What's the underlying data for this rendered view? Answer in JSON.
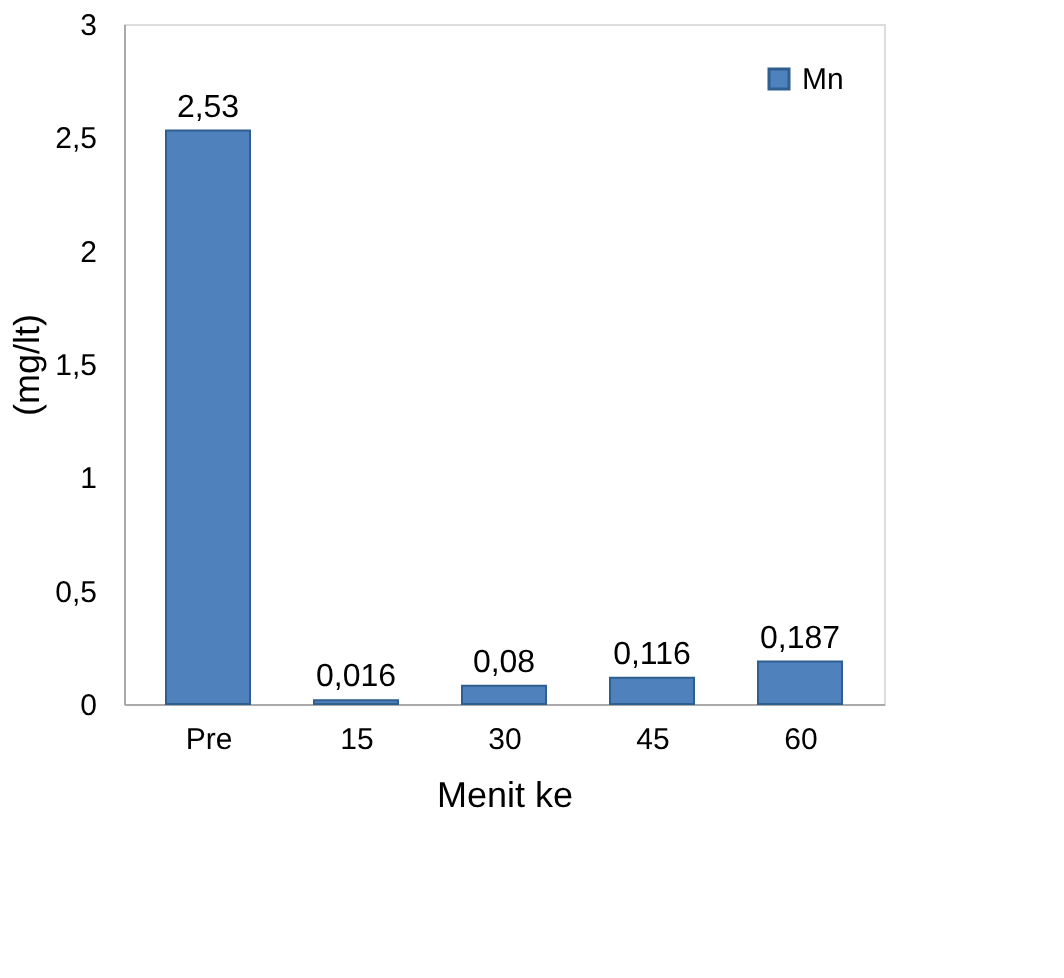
{
  "chart_data": {
    "type": "bar",
    "xlabel": "Menit ke",
    "ylabel": "(mg/lt)",
    "categories": [
      "Pre",
      "15",
      "30",
      "45",
      "60"
    ],
    "series": [
      {
        "name": "Mn",
        "color": "#4f81bd",
        "values": [
          2.53,
          0.016,
          0.08,
          0.116,
          0.187
        ],
        "value_labels": [
          "2,53",
          "0,016",
          "0,08",
          "0,116",
          "0,187"
        ]
      }
    ],
    "ylim": [
      0,
      3
    ],
    "yticks": [
      0,
      {
        "value": 0.5,
        "label": "0,5"
      },
      1,
      {
        "value": 1.5,
        "label": "1,5"
      },
      2,
      {
        "value": 2.5,
        "label": "2,5"
      },
      3
    ],
    "grid": false,
    "legend": "top right"
  }
}
